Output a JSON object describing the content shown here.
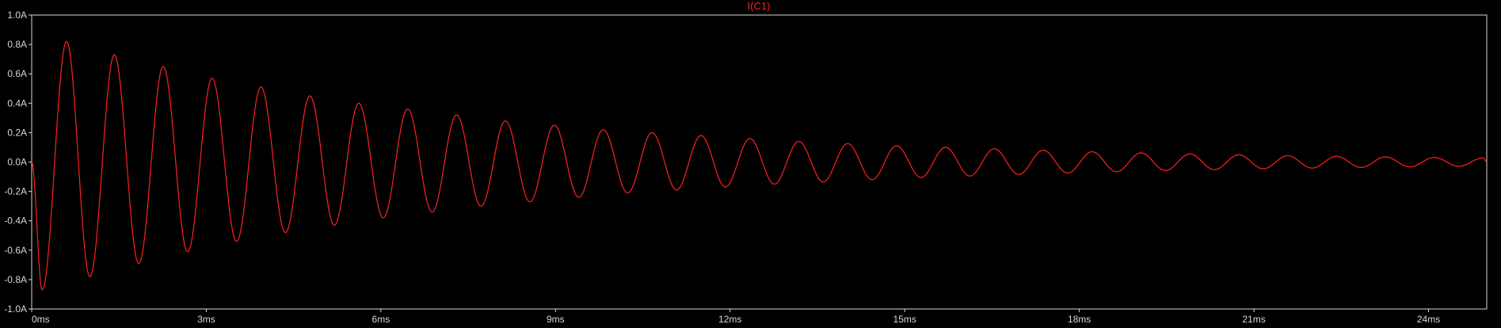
{
  "chart_data": {
    "type": "line",
    "title": "I(C1)",
    "xlabel": "",
    "ylabel": "",
    "xlim": [
      0,
      25
    ],
    "ylim": [
      -1.0,
      1.0
    ],
    "x_ticks": [
      0,
      3,
      6,
      9,
      12,
      15,
      18,
      21,
      24
    ],
    "x_tick_labels": [
      "0ms",
      "3ms",
      "6ms",
      "9ms",
      "12ms",
      "15ms",
      "18ms",
      "21ms",
      "24ms"
    ],
    "y_ticks": [
      1.0,
      0.8,
      0.6,
      0.4,
      0.2,
      0.0,
      -0.2,
      -0.4,
      -0.6,
      -0.8,
      -1.0
    ],
    "y_tick_labels": [
      "1.0A",
      "0.8A",
      "0.6A",
      "0.4A",
      "0.2A",
      "0.0A",
      "-0.2A",
      "-0.4A",
      "-0.6A",
      "-0.8A",
      "-1.0A"
    ],
    "grid": false,
    "background_color": "#000000",
    "axis_color": "#d8d8d8",
    "series": [
      {
        "color": "#ff2020",
        "x": [
          0.0,
          0.18,
          0.6,
          1.0,
          1.42,
          1.84,
          2.26,
          2.68,
          3.1,
          3.52,
          3.94,
          4.36,
          4.78,
          5.2,
          5.62,
          6.04,
          6.46,
          6.88,
          7.3,
          7.72,
          8.14,
          8.56,
          8.98,
          9.4,
          9.82,
          10.24,
          10.66,
          11.08,
          11.5,
          11.92,
          12.34,
          12.76,
          13.18,
          13.6,
          14.02,
          14.44,
          14.86,
          15.28,
          15.7,
          16.12,
          16.54,
          16.96,
          17.38,
          17.8,
          18.22,
          18.64,
          19.06,
          19.48,
          19.9,
          20.32,
          20.74,
          21.16,
          21.58,
          22.0,
          22.42,
          22.84,
          23.26,
          23.68,
          24.1,
          24.52,
          24.94,
          25.0
        ],
        "y": [
          0.0,
          -0.87,
          0.82,
          -0.78,
          0.73,
          -0.69,
          0.65,
          -0.61,
          0.57,
          -0.54,
          0.51,
          -0.48,
          0.45,
          -0.43,
          0.4,
          -0.38,
          0.36,
          -0.34,
          0.32,
          -0.3,
          0.28,
          -0.27,
          0.25,
          -0.24,
          0.22,
          -0.21,
          0.2,
          -0.19,
          0.18,
          -0.17,
          0.16,
          -0.15,
          0.14,
          -0.135,
          0.125,
          -0.12,
          0.11,
          -0.105,
          0.1,
          -0.095,
          0.09,
          -0.085,
          0.08,
          -0.075,
          0.07,
          -0.066,
          0.062,
          -0.058,
          0.055,
          -0.052,
          0.049,
          -0.046,
          0.043,
          -0.041,
          0.039,
          -0.037,
          0.035,
          -0.033,
          0.031,
          -0.029,
          0.028,
          0.0
        ]
      }
    ]
  }
}
